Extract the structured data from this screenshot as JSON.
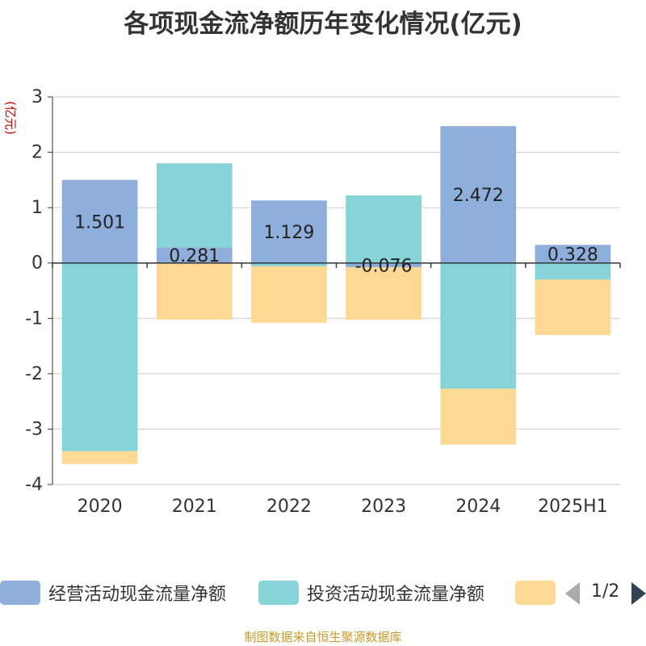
{
  "title": "各项现金流净额历年变化情况(亿元)",
  "source_note": "制图数据来自恒生聚源数据库",
  "legend_pager": {
    "text": "1/2",
    "prev_icon": "triangle-left-icon",
    "next_icon": "triangle-right-icon"
  },
  "chart_data": {
    "type": "bar",
    "stacked": true,
    "categories": [
      "2020",
      "2021",
      "2022",
      "2023",
      "2024",
      "2025H1"
    ],
    "ylabel": "(亿元)",
    "ylim": [
      -4,
      3
    ],
    "yticks": [
      3,
      2,
      1,
      0,
      -1,
      -2,
      -3,
      -4
    ],
    "grid": true,
    "legend_position": "bottom",
    "series": [
      {
        "name": "经营活动现金流量净额",
        "color": "#8eaedb",
        "values": [
          1.501,
          0.281,
          1.129,
          -0.076,
          2.472,
          0.328
        ],
        "labels": [
          "1.501",
          "0.281",
          "1.129",
          "-0.076",
          "2.472",
          "0.328"
        ]
      },
      {
        "name": "投资活动现金流量净额",
        "color": "#86d4d8",
        "values": [
          -3.4,
          1.52,
          -0.06,
          1.22,
          -2.27,
          -0.3
        ],
        "labels": []
      },
      {
        "name": "",
        "color": "#fed994",
        "values": [
          -0.23,
          -1.02,
          -1.02,
          -0.95,
          -1.01,
          -1.0
        ],
        "labels": []
      }
    ]
  }
}
